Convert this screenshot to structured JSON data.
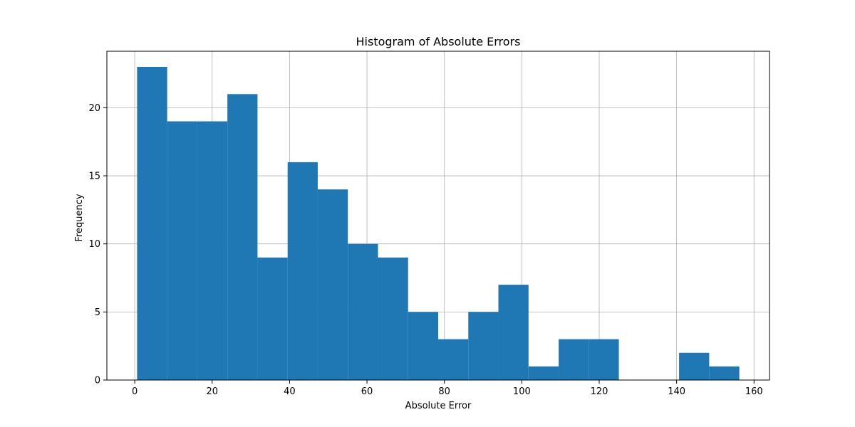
{
  "chart_data": {
    "type": "bar",
    "title": "Histogram of Absolute Errors",
    "xlabel": "Absolute Error",
    "ylabel": "Frequency",
    "bin_edges": [
      0.6,
      8.38,
      16.16,
      23.94,
      31.72,
      39.5,
      47.28,
      55.06,
      62.84,
      70.62,
      78.4,
      86.18,
      93.96,
      101.74,
      109.52,
      117.3,
      125.08,
      132.86,
      140.64,
      148.42,
      156.2
    ],
    "values": [
      23,
      19,
      19,
      21,
      9,
      16,
      14,
      10,
      9,
      5,
      3,
      5,
      7,
      1,
      3,
      3,
      0,
      0,
      2,
      1
    ],
    "xlim": [
      -7.2,
      164.0
    ],
    "ylim": [
      0,
      24.15
    ],
    "xticks": [
      0,
      20,
      40,
      60,
      80,
      100,
      120,
      140,
      160
    ],
    "yticks": [
      0,
      5,
      10,
      15,
      20
    ],
    "grid": true,
    "bar_color": "#1f77b4",
    "grid_color": "#b0b0b0"
  }
}
